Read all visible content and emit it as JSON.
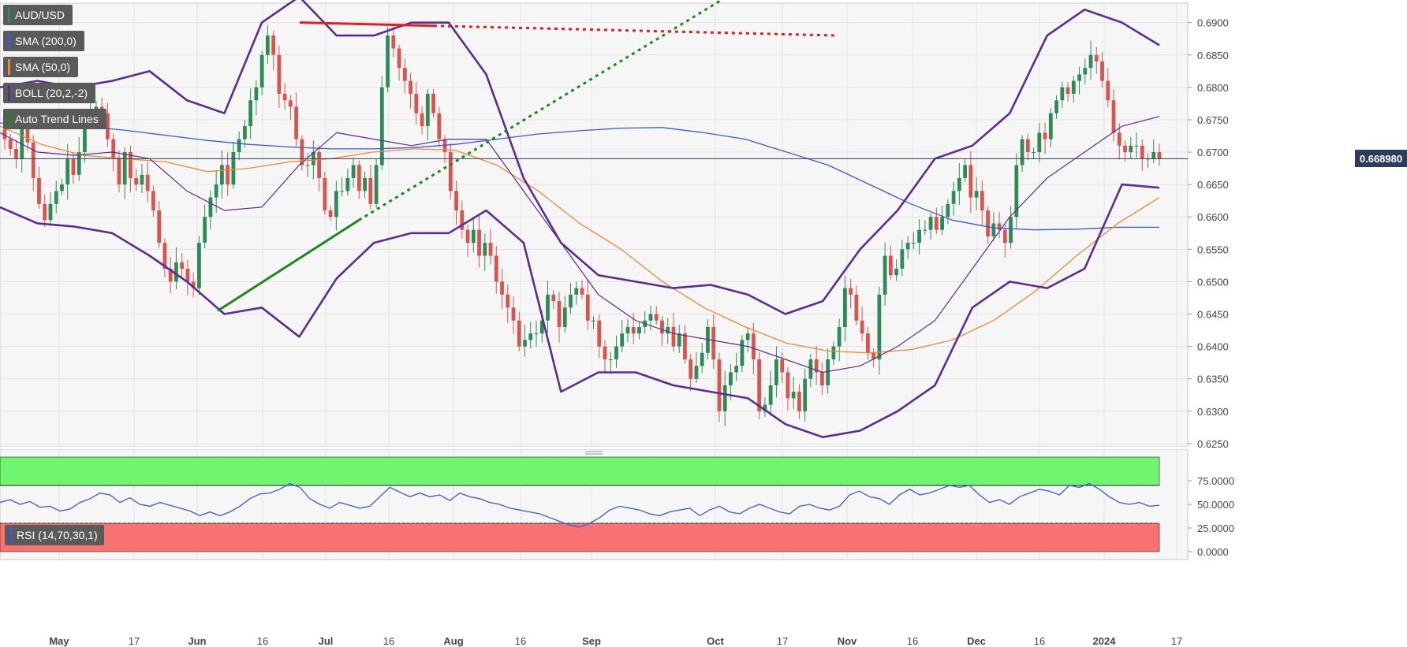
{
  "legend": {
    "symbol": "AUD/USD",
    "sma200": "SMA (200,0)",
    "sma50": "SMA (50,0)",
    "boll": "BOLL (20,2,-2)",
    "trend": "Auto Trend Lines",
    "rsi": "RSI (14,70,30,1)"
  },
  "current_price": "0.668980",
  "colors": {
    "up": "#2e8b57",
    "down": "#d9534f",
    "sma200": "#3a5bd9",
    "sma50": "#f08a30",
    "boll": "#5a2d91",
    "trend_support": "#1a8a1a",
    "trend_resist": "#e02020",
    "rsi_line": "#3a5bd9",
    "rsi_over": "#6ff56f",
    "rsi_under": "#f87272"
  },
  "chart_data": [
    {
      "type": "candlestick",
      "title": "AUD/USD",
      "y_ticks": [
        "0.6900",
        "0.6850",
        "0.6800",
        "0.6750",
        "0.6700",
        "0.6650",
        "0.6600",
        "0.6550",
        "0.6500",
        "0.6450",
        "0.6400",
        "0.6350",
        "0.6300",
        "0.6250"
      ],
      "x_ticks": [
        "May",
        "17",
        "Jun",
        "16",
        "Jul",
        "16",
        "Aug",
        "16",
        "Sep",
        "Oct",
        "17",
        "Nov",
        "16",
        "Dec",
        "16",
        "2024",
        "17"
      ],
      "ylim": [
        0.6245,
        0.693
      ],
      "closes": [
        0.672,
        0.6705,
        0.669,
        0.674,
        0.6715,
        0.666,
        0.662,
        0.6595,
        0.662,
        0.664,
        0.665,
        0.669,
        0.6665,
        0.67,
        0.675,
        0.676,
        0.677,
        0.676,
        0.672,
        0.669,
        0.665,
        0.67,
        0.666,
        0.665,
        0.6665,
        0.664,
        0.661,
        0.656,
        0.652,
        0.65,
        0.653,
        0.652,
        0.65,
        0.649,
        0.656,
        0.66,
        0.663,
        0.665,
        0.668,
        0.665,
        0.67,
        0.672,
        0.674,
        0.678,
        0.68,
        0.685,
        0.688,
        0.685,
        0.679,
        0.678,
        0.677,
        0.672,
        0.668,
        0.668,
        0.67,
        0.666,
        0.661,
        0.66,
        0.664,
        0.664,
        0.666,
        0.668,
        0.664,
        0.666,
        0.662,
        0.668,
        0.68,
        0.688,
        0.686,
        0.683,
        0.681,
        0.679,
        0.676,
        0.674,
        0.679,
        0.676,
        0.672,
        0.67,
        0.664,
        0.661,
        0.658,
        0.656,
        0.658,
        0.654,
        0.656,
        0.654,
        0.65,
        0.648,
        0.646,
        0.644,
        0.64,
        0.641,
        0.642,
        0.642,
        0.644,
        0.648,
        0.647,
        0.643,
        0.646,
        0.648,
        0.649,
        0.648,
        0.644,
        0.644,
        0.64,
        0.638,
        0.638,
        0.64,
        0.642,
        0.643,
        0.642,
        0.643,
        0.644,
        0.645,
        0.644,
        0.642,
        0.643,
        0.64,
        0.642,
        0.638,
        0.635,
        0.637,
        0.639,
        0.643,
        0.638,
        0.63,
        0.634,
        0.636,
        0.637,
        0.641,
        0.642,
        0.638,
        0.63,
        0.631,
        0.634,
        0.638,
        0.636,
        0.632,
        0.633,
        0.63,
        0.635,
        0.638,
        0.636,
        0.634,
        0.638,
        0.64,
        0.643,
        0.649,
        0.648,
        0.644,
        0.642,
        0.639,
        0.638,
        0.648,
        0.654,
        0.651,
        0.652,
        0.655,
        0.656,
        0.656,
        0.658,
        0.658,
        0.66,
        0.658,
        0.66,
        0.662,
        0.664,
        0.666,
        0.668,
        0.663,
        0.664,
        0.661,
        0.657,
        0.659,
        0.658,
        0.656,
        0.66,
        0.668,
        0.672,
        0.67,
        0.67,
        0.673,
        0.672,
        0.676,
        0.678,
        0.68,
        0.679,
        0.681,
        0.682,
        0.683,
        0.685,
        0.684,
        0.681,
        0.678,
        0.673,
        0.671,
        0.67,
        0.671,
        0.671,
        0.669,
        0.669,
        0.67,
        0.669
      ],
      "sma200": [
        0.6745,
        0.6744,
        0.674,
        0.6734,
        0.6726,
        0.6718,
        0.6712,
        0.6708,
        0.6705,
        0.6705,
        0.6707,
        0.6712,
        0.672,
        0.6728,
        0.6733,
        0.6737,
        0.6738,
        0.673,
        0.672,
        0.67,
        0.668,
        0.665,
        0.662,
        0.6595,
        0.6583,
        0.658,
        0.6581,
        0.6584,
        0.6584
      ],
      "sma50": [
        0.674,
        0.6712,
        0.6695,
        0.669,
        0.6685,
        0.667,
        0.6675,
        0.6685,
        0.669,
        0.67,
        0.6705,
        0.6703,
        0.668,
        0.664,
        0.659,
        0.655,
        0.65,
        0.646,
        0.643,
        0.6405,
        0.6393,
        0.639,
        0.6395,
        0.641,
        0.644,
        0.6485,
        0.654,
        0.659,
        0.663
      ],
      "boll_mid": [
        0.673,
        0.67,
        0.6695,
        0.67,
        0.669,
        0.664,
        0.661,
        0.6615,
        0.668,
        0.673,
        0.672,
        0.671,
        0.672,
        0.672,
        0.664,
        0.656,
        0.648,
        0.644,
        0.642,
        0.641,
        0.64,
        0.638,
        0.636,
        0.637,
        0.64,
        0.644,
        0.652,
        0.66,
        0.666,
        0.67,
        0.674,
        0.6755
      ],
      "boll_upper": [
        0.68,
        0.681,
        0.68,
        0.681,
        0.6825,
        0.678,
        0.676,
        0.69,
        0.694,
        0.688,
        0.688,
        0.69,
        0.69,
        0.682,
        0.666,
        0.656,
        0.651,
        0.65,
        0.649,
        0.6495,
        0.648,
        0.645,
        0.647,
        0.655,
        0.661,
        0.669,
        0.671,
        0.676,
        0.688,
        0.692,
        0.69,
        0.6865
      ],
      "boll_lower": [
        0.6615,
        0.659,
        0.6585,
        0.6575,
        0.654,
        0.65,
        0.645,
        0.646,
        0.6415,
        0.6505,
        0.656,
        0.6575,
        0.6575,
        0.661,
        0.656,
        0.633,
        0.636,
        0.636,
        0.634,
        0.633,
        0.632,
        0.628,
        0.626,
        0.627,
        0.63,
        0.634,
        0.646,
        0.65,
        0.649,
        0.652,
        0.665,
        0.6645
      ],
      "trend_support": {
        "from": [
          "Jun-01",
          0.6455
        ],
        "to": [
          "Jul-04",
          0.6595
        ],
        "extended_to": [
          "Aug-28",
          0.6935
        ]
      },
      "trend_resistance": {
        "from": [
          "Jun-16",
          0.69
        ],
        "to": [
          "Jul-18",
          0.6895
        ],
        "extended_to": [
          "Oct-05",
          0.688
        ]
      },
      "current": 0.66898
    },
    {
      "type": "line",
      "title": "RSI (14,70,30,1)",
      "y_ticks": [
        "75.0000",
        "50.0000",
        "25.0000",
        "0.0000"
      ],
      "ylim": [
        0,
        100
      ],
      "overbought": 70,
      "oversold": 30,
      "values": [
        52,
        55,
        50,
        53,
        47,
        48,
        43,
        45,
        52,
        56,
        62,
        60,
        52,
        57,
        50,
        48,
        52,
        49,
        46,
        43,
        38,
        42,
        38,
        42,
        48,
        56,
        61,
        62,
        66,
        72,
        68,
        56,
        50,
        46,
        52,
        49,
        46,
        48,
        58,
        68,
        63,
        58,
        62,
        58,
        60,
        54,
        62,
        58,
        56,
        52,
        50,
        46,
        44,
        42,
        40,
        36,
        32,
        28,
        26,
        30,
        36,
        44,
        48,
        46,
        44,
        40,
        38,
        42,
        44,
        46,
        38,
        44,
        48,
        42,
        40,
        46,
        50,
        46,
        42,
        40,
        48,
        50,
        46,
        44,
        48,
        60,
        64,
        58,
        56,
        50,
        60,
        66,
        60,
        62,
        66,
        70,
        68,
        70,
        60,
        52,
        55,
        50,
        58,
        62,
        66,
        64,
        60,
        70,
        68,
        72,
        66,
        58,
        52,
        50,
        52,
        48,
        49
      ]
    }
  ]
}
